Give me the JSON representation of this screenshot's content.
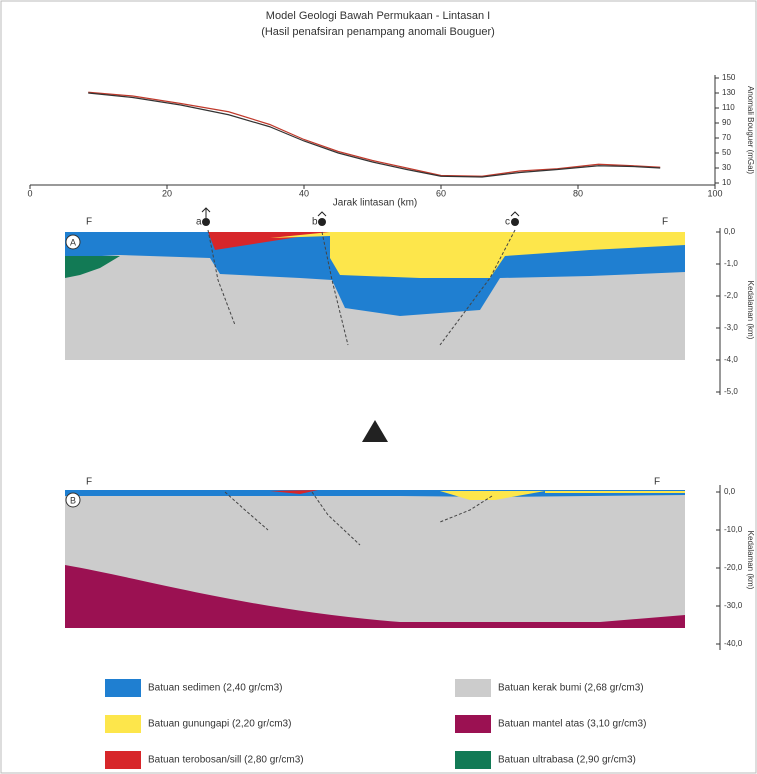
{
  "title": "Model Geologi Bawah Permukaan - Lintasan I",
  "subtitle": "(Hasil penafsiran penampang anomali Bouguer)",
  "profile": {
    "x_label": "Jarak lintasan (km)",
    "y_label": "Anomali Bouguer (mGal)",
    "xlim": [
      0,
      100
    ],
    "xticks": [
      0,
      20,
      40,
      60,
      80,
      100
    ],
    "ylim": [
      10,
      150
    ],
    "yticks": [
      150,
      130,
      110,
      90,
      70,
      50,
      30,
      10
    ],
    "x": [
      8.5,
      15,
      22,
      29,
      35,
      40,
      45,
      50,
      55,
      60,
      66,
      71.5,
      77,
      83,
      88,
      92
    ],
    "series": [
      {
        "color": "#c0392b",
        "values": [
          131,
          126,
          116,
          105,
          88,
          68,
          52,
          40,
          30,
          20,
          19,
          26,
          29,
          35,
          33,
          31
        ]
      },
      {
        "color": "#333333",
        "values": [
          130,
          124,
          114,
          101,
          85,
          66,
          50,
          38,
          28,
          19,
          18,
          24,
          28,
          33,
          32,
          30
        ]
      }
    ]
  },
  "section_a": {
    "label": "A",
    "left": "F",
    "fault_a": "a",
    "fault_b": "b",
    "fault_c": "c",
    "right": "F",
    "y_label": "Kedalaman (km)",
    "ticks": [
      "0,0",
      "-1,0",
      "-2,0",
      "-3,0",
      "-4,0",
      "-5,0"
    ]
  },
  "section_b": {
    "label": "B",
    "left": "F",
    "right": "F",
    "y_label": "Kedalaman (km)",
    "ticks": [
      "0,0",
      "-10,0",
      "-20,0",
      "-30,0",
      "-40,0"
    ]
  },
  "legend": [
    {
      "label": "Batuan sedimen (2,40 gr/cm3)",
      "color": "#1f7fd1"
    },
    {
      "label": "Batuan kerak bumi (2,68 gr/cm3)",
      "color": "#cccccc"
    },
    {
      "label": "Batuan gunungapi (2,20 gr/cm3)",
      "color": "#fde64b"
    },
    {
      "label": "Batuan mantel atas (3,10 gr/cm3)",
      "color": "#9b1152"
    },
    {
      "label": "Batuan terobosan/sill (2,80 gr/cm3)",
      "color": "#d7262a"
    },
    {
      "label": "Batuan ultrabasa (2,90 gr/cm3)",
      "color": "#127a55"
    }
  ]
}
